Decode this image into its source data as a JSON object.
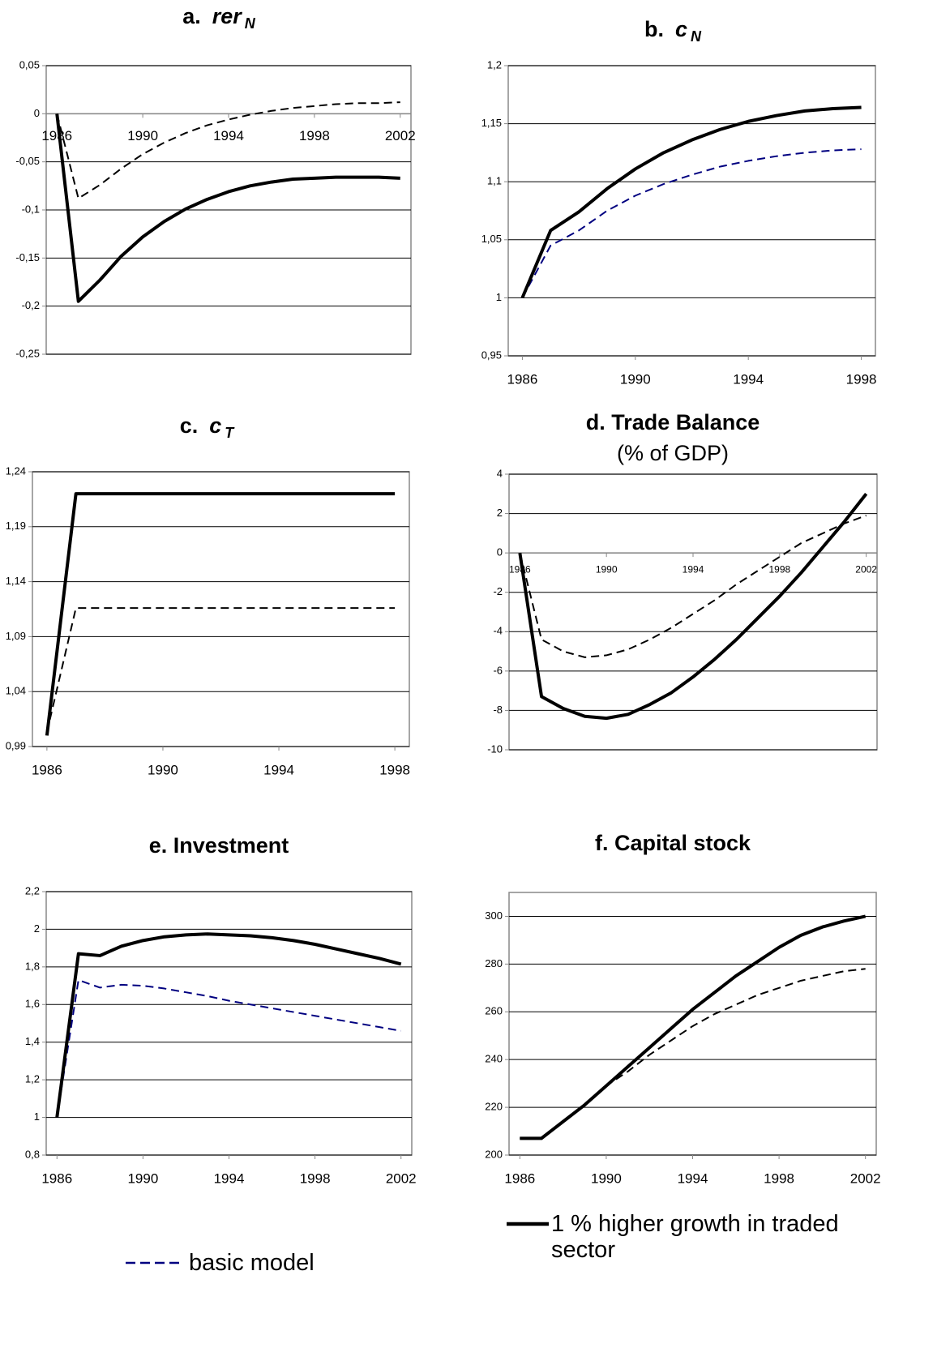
{
  "chart_data": [
    {
      "type": "line",
      "title": "a.",
      "title_symbol": "rer",
      "title_subscript": "N",
      "x": [
        1986,
        1987,
        1988,
        1989,
        1990,
        1991,
        1992,
        1993,
        1994,
        1995,
        1996,
        1997,
        1998,
        1999,
        2000,
        2001,
        2002
      ],
      "xlim": [
        1985.5,
        2002.5
      ],
      "xticks": [
        1986,
        1990,
        1994,
        1998,
        2002
      ],
      "ylim": [
        -0.25,
        0.05
      ],
      "yticks": [
        {
          "value": 0.05,
          "label": "0,05"
        },
        0,
        {
          "value": -0.05,
          "label": "-0,05"
        },
        {
          "value": -0.1,
          "label": "-0,1"
        },
        {
          "value": -0.15,
          "label": "-0,15"
        },
        {
          "value": -0.2,
          "label": "-0,2"
        },
        {
          "value": -0.25,
          "label": "-0,25"
        }
      ],
      "grid": true,
      "series": [
        {
          "color": "#000000",
          "dash": true,
          "values": [
            0,
            -0.088,
            -0.074,
            -0.057,
            -0.042,
            -0.03,
            -0.02,
            -0.012,
            -0.006,
            -0.001,
            0.003,
            0.006,
            0.008,
            0.01,
            0.011,
            0.011,
            0.012
          ]
        },
        {
          "color": "#000000",
          "dash": false,
          "values": [
            0,
            -0.195,
            -0.173,
            -0.148,
            -0.128,
            -0.112,
            -0.099,
            -0.089,
            -0.081,
            -0.075,
            -0.071,
            -0.068,
            -0.067,
            -0.066,
            -0.066,
            -0.066,
            -0.067
          ]
        }
      ]
    },
    {
      "type": "line",
      "title": "b.",
      "title_symbol": "c",
      "title_subscript": "N",
      "x": [
        1986,
        1987,
        1988,
        1989,
        1990,
        1991,
        1992,
        1993,
        1994,
        1995,
        1996,
        1997,
        1998
      ],
      "xlim": [
        1985.5,
        1998.5
      ],
      "xticks": [
        1986,
        1990,
        1994,
        1998
      ],
      "ylim": [
        0.95,
        1.2
      ],
      "yticks": [
        {
          "value": 0.95,
          "label": "0,95"
        },
        1,
        {
          "value": 1.05,
          "label": "1,05"
        },
        {
          "value": 1.1,
          "label": "1,1"
        },
        {
          "value": 1.15,
          "label": "1,15"
        },
        {
          "value": 1.2,
          "label": "1,2"
        }
      ],
      "grid": true,
      "series": [
        {
          "color": "#000080",
          "dash": true,
          "values": [
            1,
            1.045,
            1.058,
            1.075,
            1.088,
            1.098,
            1.106,
            1.113,
            1.118,
            1.122,
            1.125,
            1.127,
            1.128
          ]
        },
        {
          "color": "#000000",
          "dash": false,
          "values": [
            1,
            1.058,
            1.074,
            1.094,
            1.111,
            1.125,
            1.136,
            1.145,
            1.152,
            1.157,
            1.161,
            1.163,
            1.164
          ]
        }
      ]
    },
    {
      "type": "line",
      "title": "c.",
      "title_symbol": "c",
      "title_subscript": "T",
      "x": [
        1986,
        1987,
        1988,
        1989,
        1990,
        1991,
        1992,
        1993,
        1994,
        1995,
        1996,
        1997,
        1998
      ],
      "xlim": [
        1985.5,
        1998.5
      ],
      "xticks": [
        1986,
        1990,
        1994,
        1998
      ],
      "ylim": [
        0.99,
        1.24
      ],
      "yticks": [
        {
          "value": 0.99,
          "label": "0,99"
        },
        {
          "value": 1.04,
          "label": "1,04"
        },
        {
          "value": 1.09,
          "label": "1,09"
        },
        {
          "value": 1.14,
          "label": "1,14"
        },
        {
          "value": 1.19,
          "label": "1,19"
        },
        {
          "value": 1.24,
          "label": "1,24"
        }
      ],
      "grid": true,
      "series": [
        {
          "color": "#000000",
          "dash": true,
          "values": [
            1.003,
            1.116,
            1.116,
            1.116,
            1.116,
            1.116,
            1.116,
            1.116,
            1.116,
            1.116,
            1.116,
            1.116,
            1.116
          ]
        },
        {
          "color": "#000000",
          "dash": false,
          "values": [
            1,
            1.22,
            1.22,
            1.22,
            1.22,
            1.22,
            1.22,
            1.22,
            1.22,
            1.22,
            1.22,
            1.22,
            1.22
          ]
        }
      ]
    },
    {
      "type": "line",
      "title": "d. Trade Balance",
      "subtitle": "(% of GDP)",
      "x": [
        1986,
        1987,
        1988,
        1989,
        1990,
        1991,
        1992,
        1993,
        1994,
        1995,
        1996,
        1997,
        1998,
        1999,
        2000,
        2001,
        2002
      ],
      "xlim": [
        1985.5,
        2002.5
      ],
      "xticks": [
        1986,
        1990,
        1994,
        1998,
        2002
      ],
      "ylim": [
        -10,
        4
      ],
      "yticks": [
        4,
        2,
        0,
        -2,
        -4,
        -6,
        -8,
        -10
      ],
      "grid": true,
      "series": [
        {
          "color": "#000000",
          "dash": true,
          "values": [
            0,
            -4.4,
            -5.0,
            -5.3,
            -5.2,
            -4.9,
            -4.4,
            -3.8,
            -3.1,
            -2.4,
            -1.6,
            -0.9,
            -0.2,
            0.5,
            1.0,
            1.5,
            1.9
          ]
        },
        {
          "color": "#000000",
          "dash": false,
          "values": [
            0,
            -7.3,
            -7.9,
            -8.3,
            -8.4,
            -8.2,
            -7.7,
            -7.1,
            -6.3,
            -5.4,
            -4.4,
            -3.3,
            -2.2,
            -1.0,
            0.3,
            1.6,
            3.0
          ]
        }
      ]
    },
    {
      "type": "line",
      "title": "e. Investment",
      "x": [
        1986,
        1987,
        1988,
        1989,
        1990,
        1991,
        1992,
        1993,
        1994,
        1995,
        1996,
        1997,
        1998,
        1999,
        2000,
        2001,
        2002
      ],
      "xlim": [
        1985.5,
        2002.5
      ],
      "xticks": [
        1986,
        1990,
        1994,
        1998,
        2002
      ],
      "ylim": [
        0.8,
        2.2
      ],
      "yticks": [
        {
          "value": 2.2,
          "label": "2,2"
        },
        2,
        {
          "value": 1.8,
          "label": "1,8"
        },
        {
          "value": 1.6,
          "label": "1,6"
        },
        {
          "value": 1.4,
          "label": "1,4"
        },
        {
          "value": 1.2,
          "label": "1,2"
        },
        1,
        {
          "value": 0.8,
          "label": "0,8"
        }
      ],
      "grid": true,
      "series": [
        {
          "color": "#000080",
          "dash": true,
          "values": [
            1,
            1.73,
            1.69,
            1.705,
            1.7,
            1.685,
            1.665,
            1.645,
            1.62,
            1.6,
            1.58,
            1.56,
            1.54,
            1.52,
            1.5,
            1.48,
            1.46
          ]
        },
        {
          "color": "#000000",
          "dash": false,
          "values": [
            1,
            1.87,
            1.86,
            1.91,
            1.94,
            1.96,
            1.97,
            1.975,
            1.97,
            1.965,
            1.955,
            1.94,
            1.92,
            1.895,
            1.87,
            1.845,
            1.815
          ]
        }
      ]
    },
    {
      "type": "line",
      "title": "f. Capital stock",
      "x": [
        1986,
        1987,
        1988,
        1989,
        1990,
        1991,
        1992,
        1993,
        1994,
        1995,
        1996,
        1997,
        1998,
        1999,
        2000,
        2001,
        2002
      ],
      "xlim": [
        1985.5,
        2002.5
      ],
      "xticks": [
        1986,
        1990,
        1994,
        1998,
        2002
      ],
      "ylim": [
        200,
        310
      ],
      "yticks": [
        300,
        280,
        260,
        240,
        220,
        200
      ],
      "grid": true,
      "series": [
        {
          "color": "#000000",
          "dash": true,
          "values": [
            207,
            207,
            214,
            221,
            229,
            235,
            242,
            248,
            254,
            259,
            263,
            267,
            270,
            273,
            275,
            277,
            278
          ]
        },
        {
          "color": "#000000",
          "dash": false,
          "values": [
            207,
            207,
            214,
            221,
            229,
            237,
            245,
            253,
            261,
            268,
            275,
            281,
            287,
            292,
            295.5,
            298,
            300
          ]
        }
      ]
    }
  ],
  "legend": [
    {
      "name": "basic model",
      "color": "#000080",
      "dash": true
    },
    {
      "name": "1 % higher growth in traded sector",
      "color": "#000000",
      "dash": false
    }
  ]
}
